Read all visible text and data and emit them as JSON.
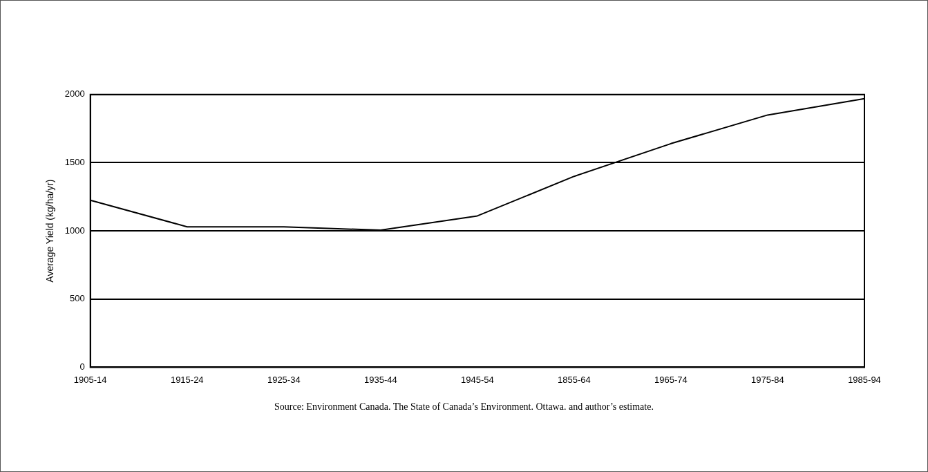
{
  "chart_data": {
    "type": "line",
    "ylabel": "Average Yield (kg/ha/yr)",
    "categories": [
      "1905-14",
      "1915-24",
      "1925-34",
      "1935-44",
      "1945-54",
      "1855-64",
      "1965-74",
      "1975-84",
      "1985-94"
    ],
    "series": [
      {
        "color": "#000000",
        "values": [
          1225,
          1030,
          1030,
          1005,
          1110,
          1400,
          1640,
          1850,
          1970
        ]
      }
    ],
    "ylim": [
      0,
      2000
    ],
    "yticks": [
      0,
      500,
      1000,
      1500,
      2000
    ],
    "grid": "y",
    "legend": false,
    "marker": "none",
    "line_style": "solid",
    "annotations": [
      "Source: Environment Canada. The State of Canada’s Environment. Ottawa. and author’s estimate."
    ]
  }
}
